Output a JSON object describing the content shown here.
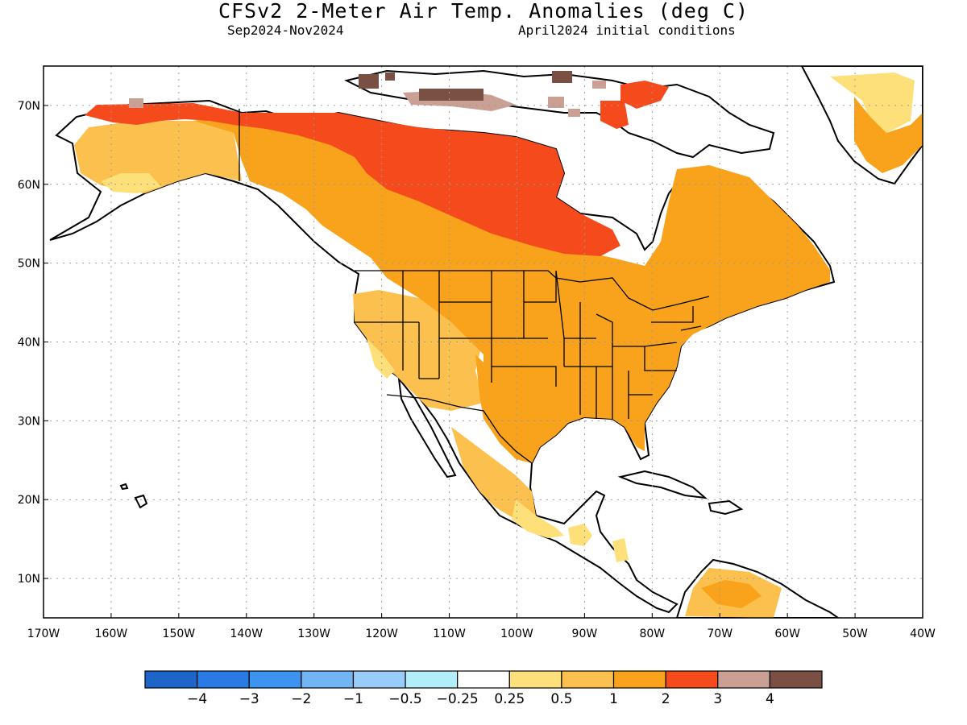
{
  "title": "CFSv2 2-Meter Air Temp. Anomalies (deg C)",
  "subtitle_left": "Sep2024-Nov2024",
  "subtitle_right": "April2024 initial conditions",
  "map": {
    "lon_range": [
      -170,
      -40
    ],
    "lat_range": [
      5,
      75
    ],
    "lat_ticks": [
      "70N",
      "60N",
      "50N",
      "40N",
      "30N",
      "20N",
      "10N"
    ],
    "lat_tick_values": [
      70,
      60,
      50,
      40,
      30,
      20,
      10
    ],
    "lon_ticks": [
      "170W",
      "160W",
      "150W",
      "140W",
      "130W",
      "120W",
      "110W",
      "100W",
      "90W",
      "80W",
      "70W",
      "60W",
      "50W",
      "40W"
    ],
    "lon_tick_values": [
      -170,
      -160,
      -150,
      -140,
      -130,
      -120,
      -110,
      -100,
      -90,
      -80,
      -70,
      -60,
      -50,
      -40
    ],
    "grid": "dotted",
    "colors": {
      "land_outline": "#000000",
      "ocean": "#ffffff",
      "anom_0_25_0_5": "#fde07a",
      "anom_0_5_1": "#fcc04e",
      "anom_1_2": "#f9a31c",
      "anom_2_3": "#f44a1c",
      "anom_3_4": "#c9a093",
      "anom_4_plus": "#7b5044"
    }
  },
  "colorbar": {
    "labels": [
      "−4",
      "−3",
      "−2",
      "−1",
      "−0.5",
      "−0.25",
      "0.25",
      "0.5",
      "1",
      "2",
      "3",
      "4"
    ],
    "colors": [
      "#1f64c8",
      "#2a7ae6",
      "#3d94f0",
      "#72b4f4",
      "#97cdf8",
      "#b2eefa",
      "#ffffff",
      "#fde07a",
      "#fcc04e",
      "#f9a31c",
      "#f44a1c",
      "#c9a093",
      "#7b5044"
    ]
  }
}
